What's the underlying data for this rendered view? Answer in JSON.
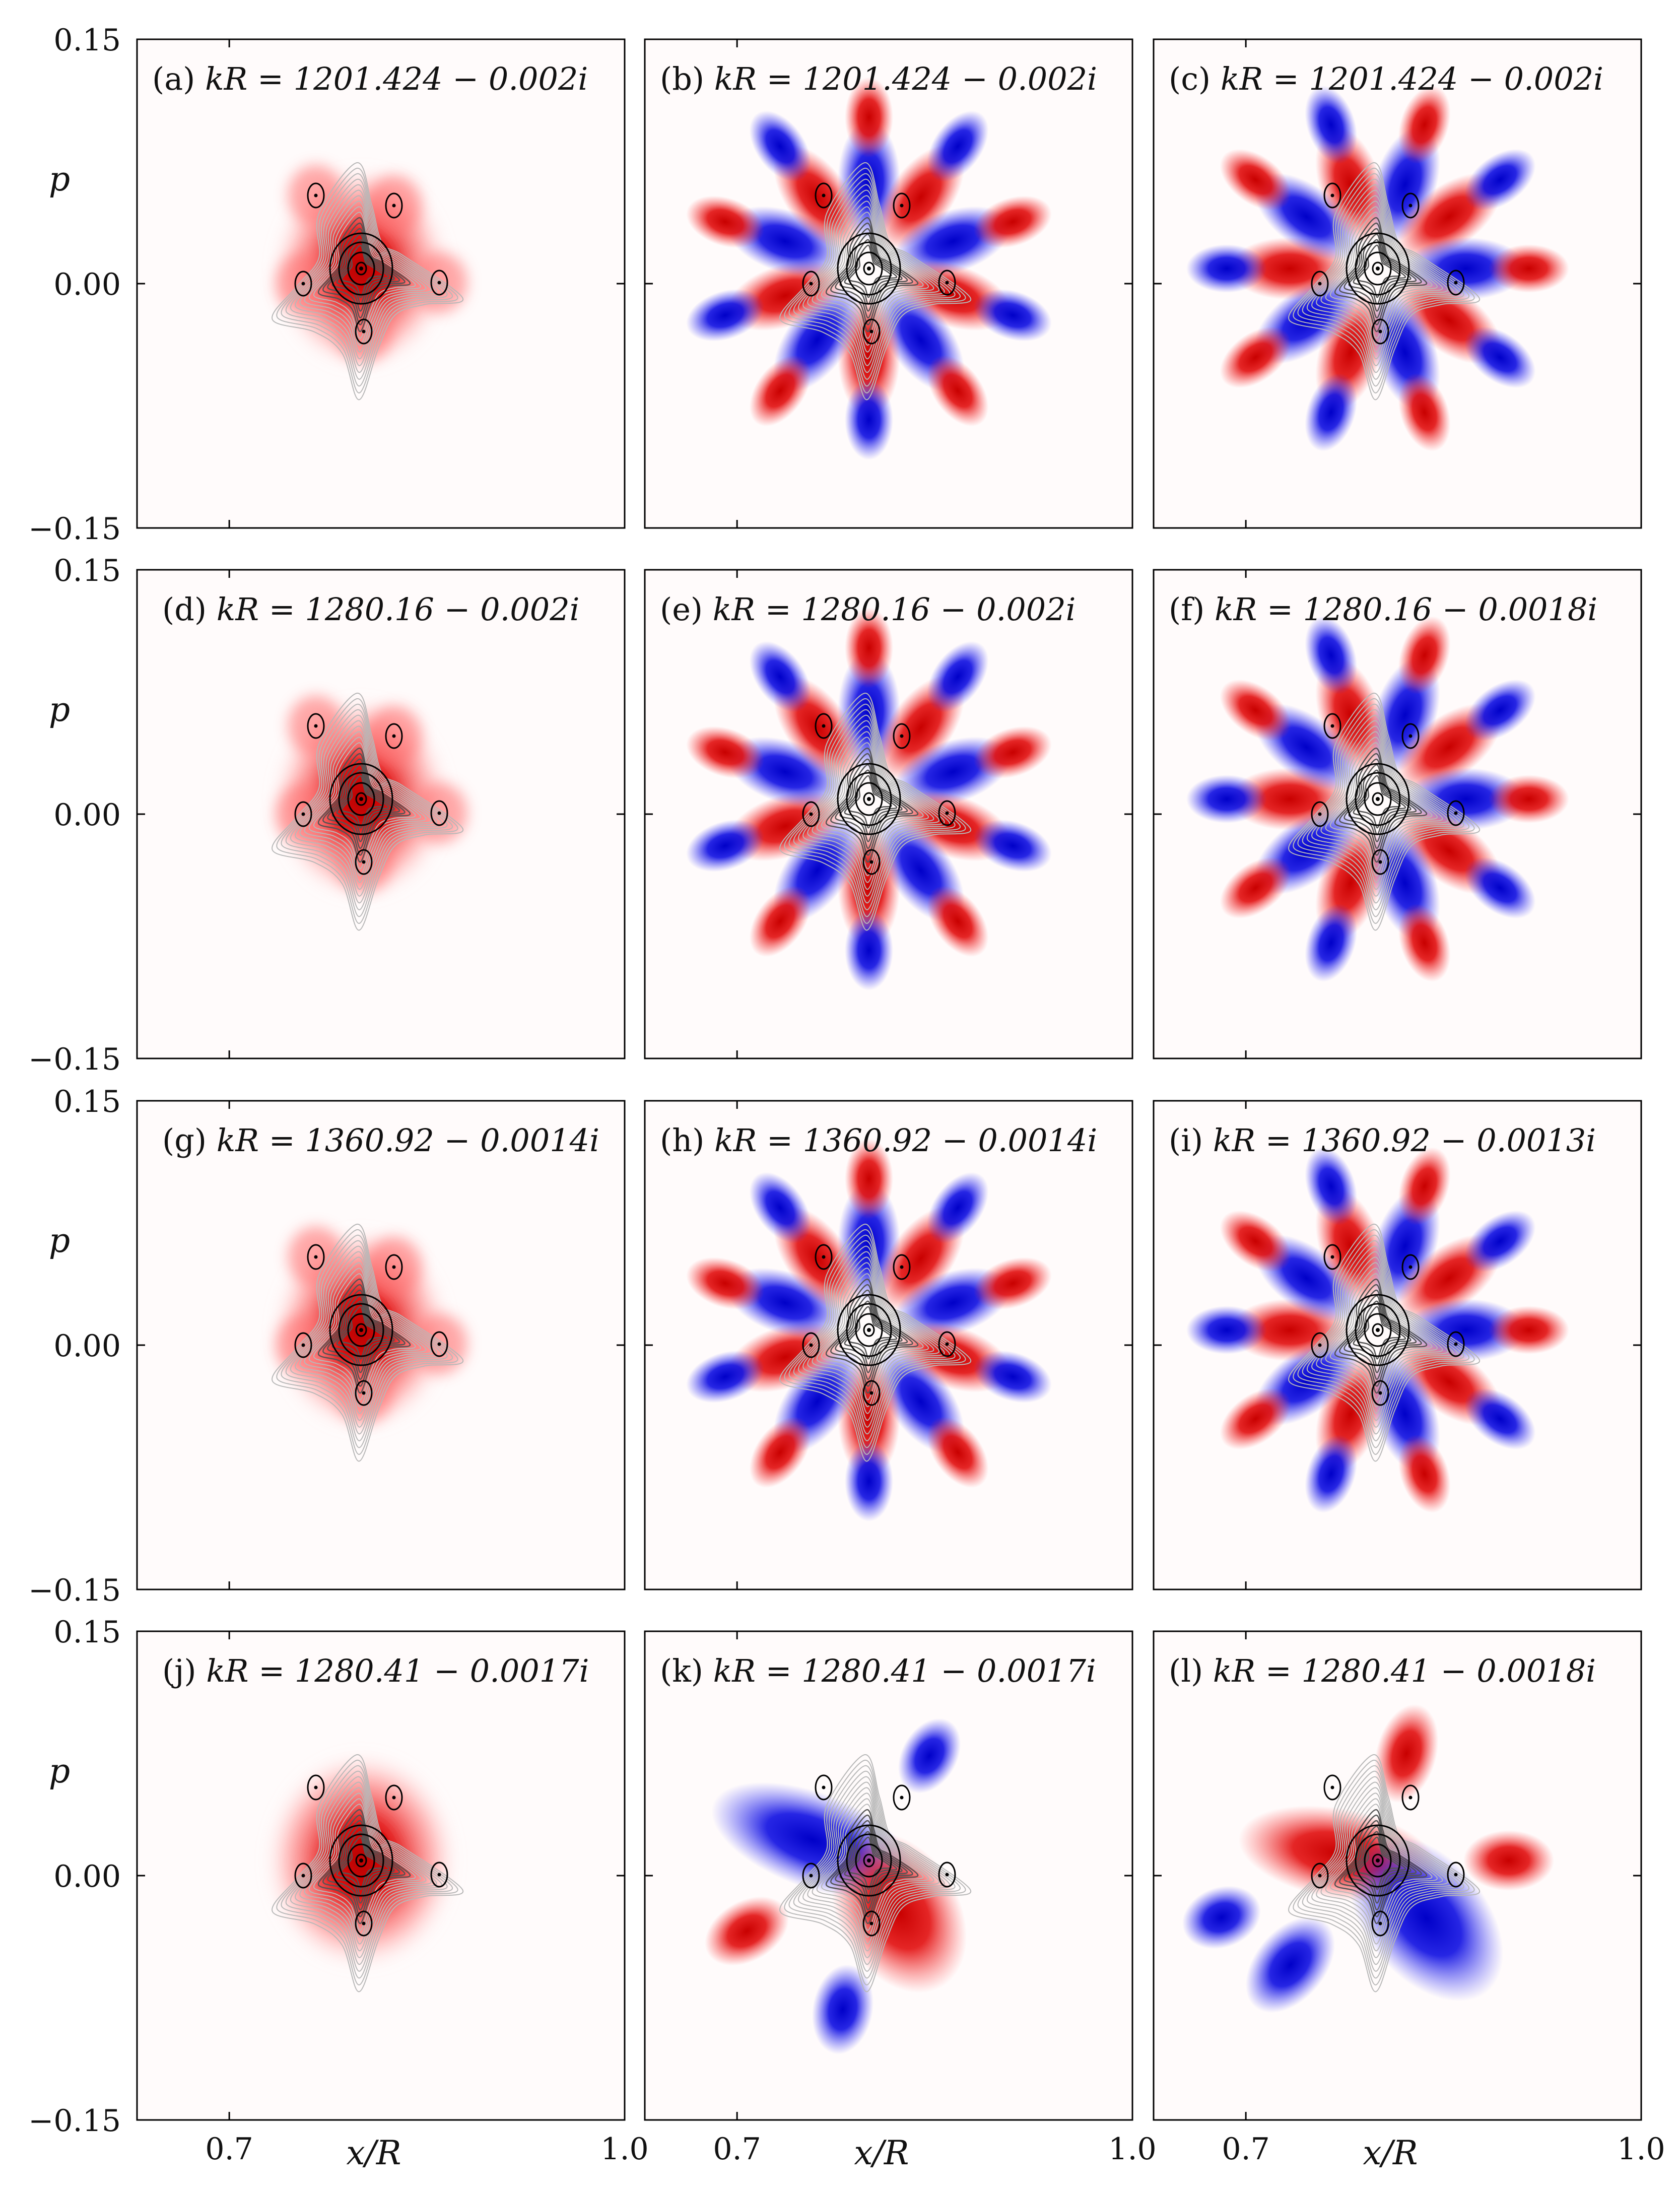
{
  "figure": {
    "y_axis_label": "p",
    "x_axis_label": "x/R",
    "y_ticks": [
      "0.15",
      "0.00",
      "−0.15"
    ],
    "x_ticks": [
      "0.7",
      "1.0"
    ],
    "colors": {
      "positive": "#e00000",
      "negative": "#0000e0",
      "contour_dark": "#000000",
      "contour_light": "#b8b8b8"
    }
  },
  "chart_data": {
    "type": "heatmap",
    "description_axes": {
      "xlabel": "x/R",
      "ylabel": "p",
      "xlim": [
        0.63,
        1.0
      ],
      "ylim": [
        -0.15,
        0.15
      ]
    },
    "rows": [
      {
        "panels": [
          {
            "label": "(a)",
            "kR": "kR = 1201.424 − 0.002i",
            "re": "1201.424",
            "im": "0.002",
            "pattern": "blob"
          },
          {
            "label": "(b)",
            "kR": "kR = 1201.424 − 0.002i",
            "re": "1201.424",
            "im": "0.002",
            "pattern": "ring10"
          },
          {
            "label": "(c)",
            "kR": "kR = 1201.424 − 0.002i",
            "re": "1201.424",
            "im": "0.002",
            "pattern": "ring10-rot"
          }
        ]
      },
      {
        "panels": [
          {
            "label": "(d)",
            "kR": "kR = 1280.16 − 0.002i",
            "re": "1280.16",
            "im": "0.002",
            "pattern": "blob"
          },
          {
            "label": "(e)",
            "kR": "kR = 1280.16 − 0.002i",
            "re": "1280.16",
            "im": "0.002",
            "pattern": "ring10"
          },
          {
            "label": "(f)",
            "kR": "kR = 1280.16 − 0.0018i",
            "re": "1280.16",
            "im": "0.0018",
            "pattern": "ring10-rot"
          }
        ]
      },
      {
        "panels": [
          {
            "label": "(g)",
            "kR": "kR = 1360.92 − 0.0014i",
            "re": "1360.92",
            "im": "0.0014",
            "pattern": "blob"
          },
          {
            "label": "(h)",
            "kR": "kR = 1360.92 − 0.0014i",
            "re": "1360.92",
            "im": "0.0014",
            "pattern": "ring10"
          },
          {
            "label": "(i)",
            "kR": "kR = 1360.92 − 0.0013i",
            "re": "1360.92",
            "im": "0.0013",
            "pattern": "ring10-rot"
          }
        ]
      },
      {
        "panels": [
          {
            "label": "(j)",
            "kR": "kR = 1280.41 − 0.0017i",
            "re": "1280.41",
            "im": "0.0017",
            "pattern": "blob-large"
          },
          {
            "label": "(k)",
            "kR": "kR = 1280.41 − 0.0017i",
            "re": "1280.41",
            "im": "0.0017",
            "pattern": "dipole"
          },
          {
            "label": "(l)",
            "kR": "kR = 1280.41 − 0.0018i",
            "re": "1280.41",
            "im": "0.0018",
            "pattern": "dipole-rot"
          }
        ]
      }
    ]
  }
}
